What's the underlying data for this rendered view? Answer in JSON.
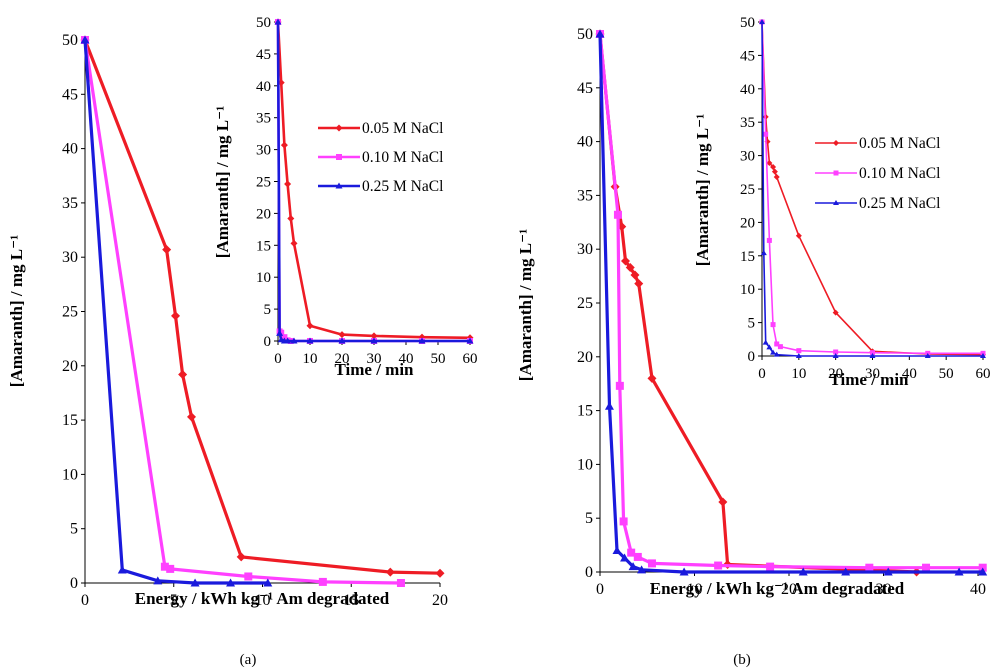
{
  "captions": [
    "(a)",
    "(b)"
  ],
  "colors": {
    "0.05 M NaCl": "#ee1c25",
    "0.10 M NaCl": "#ff40ff",
    "0.25 M NaCl": "#1a1adc"
  },
  "chart_data": [
    {
      "id": "a_main",
      "type": "line",
      "xlabel": "Energy / kWh kg⁻¹ Am degradated",
      "ylabel": "[Amaranth] / mg L⁻¹",
      "xlim": [
        0,
        20
      ],
      "ylim": [
        0,
        50
      ],
      "xticks": [
        "0",
        "5",
        "10",
        "15",
        "20"
      ],
      "yticks": [
        "0",
        "5",
        "10",
        "15",
        "20",
        "25",
        "30",
        "35",
        "40",
        "45",
        "50"
      ],
      "series": [
        {
          "name": "0.05 M NaCl",
          "marker": "diamond",
          "points": [
            [
              0,
              50
            ],
            [
              4.6,
              30.7
            ],
            [
              5.1,
              24.6
            ],
            [
              5.5,
              19.2
            ],
            [
              6.0,
              15.3
            ],
            [
              8.8,
              2.4
            ],
            [
              17.2,
              1.0
            ],
            [
              20,
              0.9
            ]
          ]
        },
        {
          "name": "0.10 M NaCl",
          "marker": "square",
          "points": [
            [
              0,
              50
            ],
            [
              4.5,
              1.5
            ],
            [
              4.8,
              1.3
            ],
            [
              9.2,
              0.6
            ],
            [
              13.4,
              0.1
            ],
            [
              17.8,
              0.0
            ]
          ]
        },
        {
          "name": "0.25 M NaCl",
          "marker": "triangle",
          "points": [
            [
              0,
              50
            ],
            [
              2.1,
              1.2
            ],
            [
              4.1,
              0.2
            ],
            [
              6.2,
              0.0
            ],
            [
              8.2,
              0.0
            ],
            [
              10.3,
              0.0
            ]
          ]
        }
      ]
    },
    {
      "id": "a_inset",
      "type": "line",
      "xlabel": "Time / min",
      "ylabel": "[Amaranth] / mg L⁻¹",
      "xlim": [
        0,
        60
      ],
      "ylim": [
        0,
        50
      ],
      "xticks": [
        "0",
        "10",
        "20",
        "30",
        "40",
        "50",
        "60"
      ],
      "yticks": [
        "0",
        "5",
        "10",
        "15",
        "20",
        "25",
        "30",
        "35",
        "40",
        "45",
        "50"
      ],
      "legend": [
        "0.05 M NaCl",
        "0.10 M NaCl",
        "0.25 M NaCl"
      ],
      "series": [
        {
          "name": "0.05 M NaCl",
          "marker": "diamond",
          "points": [
            [
              0,
              50
            ],
            [
              1,
              40.5
            ],
            [
              2,
              30.7
            ],
            [
              3,
              24.6
            ],
            [
              4,
              19.2
            ],
            [
              5,
              15.3
            ],
            [
              10,
              2.4
            ],
            [
              20,
              1.0
            ],
            [
              30,
              0.8
            ],
            [
              45,
              0.6
            ],
            [
              60,
              0.5
            ]
          ]
        },
        {
          "name": "0.10 M NaCl",
          "marker": "square",
          "points": [
            [
              0,
              50
            ],
            [
              0.5,
              1.5
            ],
            [
              1,
              1.3
            ],
            [
              2,
              0.6
            ],
            [
              3,
              0.1
            ],
            [
              4,
              0.0
            ],
            [
              10,
              0.0
            ],
            [
              20,
              0.0
            ],
            [
              30,
              0.0
            ],
            [
              45,
              0.0
            ],
            [
              60,
              0.0
            ]
          ]
        },
        {
          "name": "0.25 M NaCl",
          "marker": "triangle",
          "points": [
            [
              0,
              50
            ],
            [
              0.5,
              1.2
            ],
            [
              1,
              0.2
            ],
            [
              2,
              0.0
            ],
            [
              3,
              0.0
            ],
            [
              5,
              0.0
            ],
            [
              10,
              0.0
            ],
            [
              20,
              0.0
            ],
            [
              30,
              0.0
            ],
            [
              45,
              0.0
            ],
            [
              60,
              0.0
            ]
          ]
        }
      ]
    },
    {
      "id": "b_main",
      "type": "line",
      "xlabel": "Energy / kWh kg⁻¹ Am degradated",
      "ylabel": "[Amaranth] / mg L⁻¹",
      "xlim": [
        0,
        40
      ],
      "ylim": [
        0,
        50
      ],
      "xticks": [
        "0",
        "10",
        "20",
        "30",
        "40"
      ],
      "yticks": [
        "0",
        "5",
        "10",
        "15",
        "20",
        "25",
        "30",
        "35",
        "40",
        "45",
        "50"
      ],
      "series": [
        {
          "name": "0.05 M NaCl",
          "marker": "diamond",
          "points": [
            [
              0,
              50
            ],
            [
              1.6,
              35.8
            ],
            [
              2.3,
              32.1
            ],
            [
              2.7,
              28.9
            ],
            [
              3.2,
              28.3
            ],
            [
              3.7,
              27.6
            ],
            [
              4.1,
              26.8
            ],
            [
              5.5,
              18.0
            ],
            [
              13.0,
              6.5
            ],
            [
              13.5,
              0.7
            ],
            [
              33.5,
              0.0
            ]
          ]
        },
        {
          "name": "0.10 M NaCl",
          "marker": "square",
          "points": [
            [
              0,
              50
            ],
            [
              1.9,
              33.2
            ],
            [
              2.1,
              17.3
            ],
            [
              2.5,
              4.7
            ],
            [
              3.3,
              1.8
            ],
            [
              4.0,
              1.4
            ],
            [
              5.5,
              0.8
            ],
            [
              12.5,
              0.6
            ],
            [
              18.0,
              0.5
            ],
            [
              28.5,
              0.4
            ],
            [
              34.5,
              0.4
            ],
            [
              40.5,
              0.4
            ]
          ]
        },
        {
          "name": "0.25 M NaCl",
          "marker": "triangle",
          "points": [
            [
              0,
              50
            ],
            [
              1.0,
              15.4
            ],
            [
              1.8,
              2.0
            ],
            [
              2.6,
              1.3
            ],
            [
              3.5,
              0.5
            ],
            [
              4.4,
              0.2
            ],
            [
              8.9,
              0.0
            ],
            [
              21.5,
              0.0
            ],
            [
              26.0,
              0.0
            ],
            [
              30.5,
              0.0
            ],
            [
              38.0,
              0.0
            ],
            [
              40.5,
              0.0
            ]
          ]
        }
      ]
    },
    {
      "id": "b_inset",
      "type": "line",
      "xlabel": "Time / min",
      "ylabel": "[Amaranth] / mg L⁻¹",
      "xlim": [
        0,
        60
      ],
      "ylim": [
        0,
        50
      ],
      "xticks": [
        "0",
        "10",
        "20",
        "30",
        "40",
        "50",
        "60"
      ],
      "yticks": [
        "0",
        "5",
        "10",
        "15",
        "20",
        "25",
        "30",
        "35",
        "40",
        "45",
        "50"
      ],
      "legend": [
        "0.05 M NaCl",
        "0.10 M NaCl",
        "0.25 M NaCl"
      ],
      "series": [
        {
          "name": "0.05 M NaCl",
          "marker": "diamond",
          "points": [
            [
              0,
              50
            ],
            [
              1,
              35.8
            ],
            [
              1.5,
              32.1
            ],
            [
              2,
              28.9
            ],
            [
              3,
              28.3
            ],
            [
              3.5,
              27.6
            ],
            [
              4,
              26.8
            ],
            [
              10,
              18.0
            ],
            [
              20,
              6.5
            ],
            [
              30,
              0.7
            ],
            [
              45,
              0.3
            ],
            [
              60,
              0.2
            ]
          ]
        },
        {
          "name": "0.10 M NaCl",
          "marker": "square",
          "points": [
            [
              0,
              50
            ],
            [
              1,
              33.2
            ],
            [
              2,
              17.3
            ],
            [
              3,
              4.7
            ],
            [
              4,
              1.8
            ],
            [
              5,
              1.4
            ],
            [
              10,
              0.8
            ],
            [
              20,
              0.6
            ],
            [
              30,
              0.5
            ],
            [
              45,
              0.4
            ],
            [
              60,
              0.4
            ]
          ]
        },
        {
          "name": "0.25 M NaCl",
          "marker": "triangle",
          "points": [
            [
              0,
              50
            ],
            [
              0.5,
              15.4
            ],
            [
              1,
              2.0
            ],
            [
              2,
              1.3
            ],
            [
              3,
              0.5
            ],
            [
              4,
              0.2
            ],
            [
              10,
              0.0
            ],
            [
              20,
              0.0
            ],
            [
              30,
              0.0
            ],
            [
              45,
              0.0
            ],
            [
              60,
              0.0
            ]
          ]
        }
      ]
    }
  ]
}
